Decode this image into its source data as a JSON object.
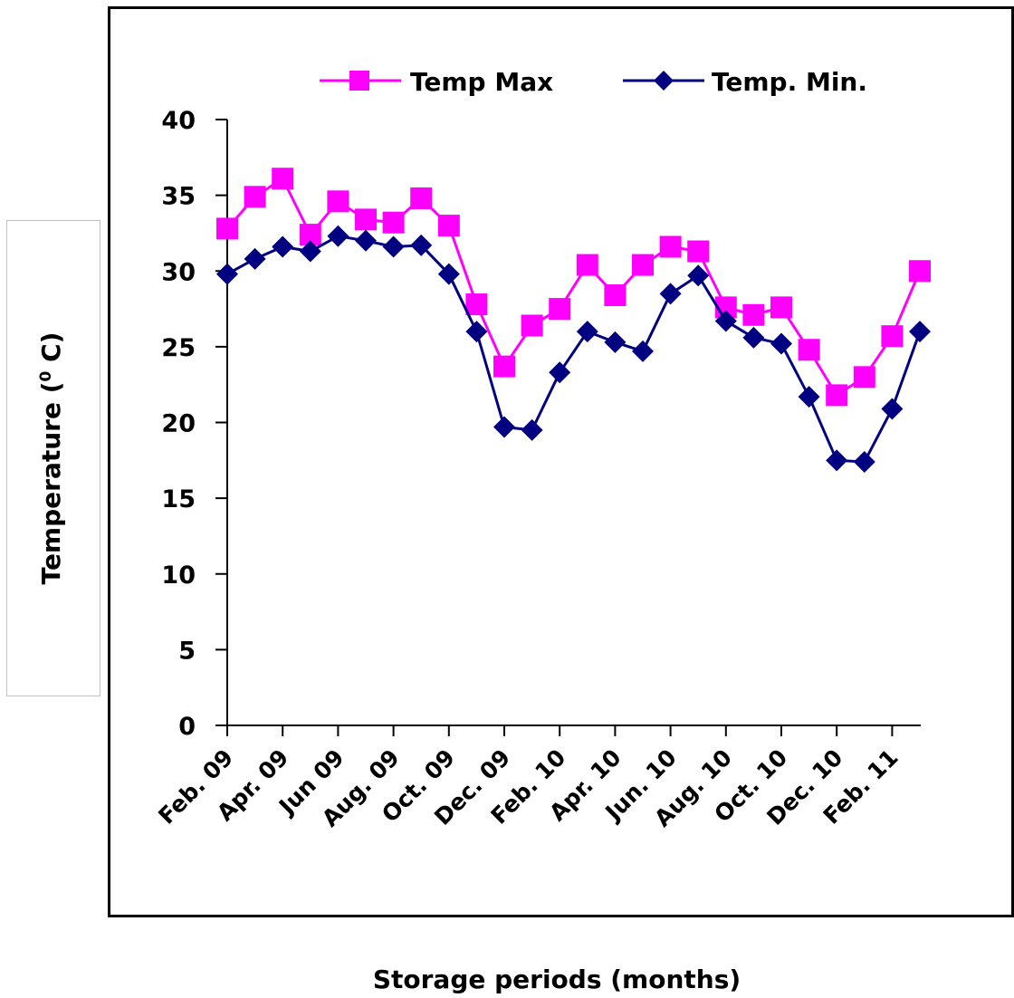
{
  "chart_data": {
    "type": "line",
    "xlabel": "Storage periods (months)",
    "ylabel": "Temperature (",
    "ylabel_sup": "0",
    "ylabel_unit": " C)",
    "ylim": [
      0,
      40
    ],
    "yticks": [
      0,
      5,
      10,
      15,
      20,
      25,
      30,
      35,
      40
    ],
    "grid": false,
    "legend_position": "top",
    "x_tick_labels": [
      "Feb. 09",
      "Apr. 09",
      "Jun 09",
      "Aug. 09",
      "Oct. 09",
      "Dec. 09",
      "Feb. 10",
      "Apr. 10",
      "Jun. 10",
      "Aug. 10",
      "Oct. 10",
      "Dec. 10",
      "Feb. 11"
    ],
    "series": [
      {
        "name": "Temp Max",
        "color": "#ff00ff",
        "marker": "square",
        "values": [
          32.8,
          34.9,
          36.1,
          32.4,
          34.6,
          33.4,
          33.2,
          34.8,
          33.0,
          27.8,
          23.7,
          26.4,
          27.5,
          30.4,
          28.4,
          30.4,
          31.6,
          31.3,
          27.6,
          27.1,
          27.6,
          24.8,
          21.8,
          23.0,
          25.7,
          30.0
        ]
      },
      {
        "name": "Temp. Min.",
        "color": "#000080",
        "marker": "diamond",
        "values": [
          29.8,
          30.8,
          31.6,
          31.3,
          32.3,
          32.0,
          31.6,
          31.7,
          29.8,
          26.0,
          19.7,
          19.5,
          23.3,
          26.0,
          25.3,
          24.7,
          28.5,
          29.7,
          26.7,
          25.6,
          25.2,
          21.7,
          17.5,
          17.4,
          20.9,
          26.0
        ]
      }
    ]
  }
}
